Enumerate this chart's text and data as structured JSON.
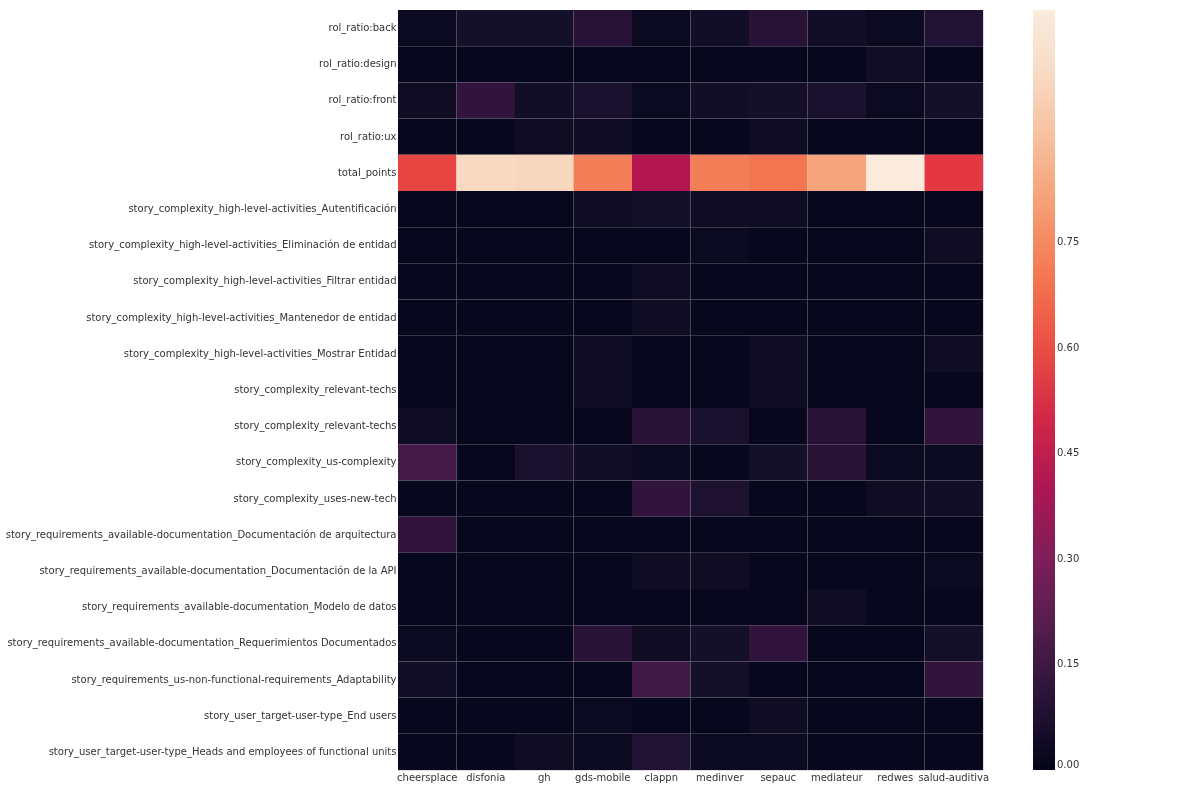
{
  "chart_data": {
    "type": "heatmap",
    "categories": [
      "cheersplace",
      "disfonia",
      "gh",
      "gds-mobile",
      "clappn",
      "medinver",
      "sepauc",
      "mediateur",
      "redwes",
      "salud-auditiva"
    ],
    "y_categories": [
      "rol_ratio:back",
      "rol_ratio:design",
      "rol_ratio:front",
      "rol_ratio:ux",
      "total_points",
      "story_complexity_high-level-activities_Autentificación",
      "story_complexity_high-level-activities_Eliminación de entidad",
      "story_complexity_high-level-activities_Filtrar entidad",
      "story_complexity_high-level-activities_Mantenedor de entidad",
      "story_complexity_high-level-activities_Mostrar Entidad",
      "story_complexity_relevant-techs",
      "story_complexity_relevant-techs",
      "story_complexity_us-complexity",
      "story_complexity_uses-new-tech",
      "story_requirements_available-documentation_Documentación de arquitectura",
      "story_requirements_available-documentation_Documentación de la API",
      "story_requirements_available-documentation_Modelo de datos",
      "story_requirements_available-documentation_Requerimientos Documentados",
      "story_requirements_us-non-functional-requirements_Adaptability",
      "story_user_target-user-type_End users",
      "story_user_target-user-type_Heads and employees of functional units"
    ],
    "cells": [
      [
        0.02,
        0.05,
        0.05,
        0.1,
        0.02,
        0.04,
        0.1,
        0.04,
        0.02,
        0.08
      ],
      [
        0.01,
        0.01,
        0.01,
        0.01,
        0.01,
        0.01,
        0.01,
        0.01,
        0.04,
        0.01
      ],
      [
        0.03,
        0.12,
        0.04,
        0.06,
        0.02,
        0.04,
        0.05,
        0.06,
        0.02,
        0.05
      ],
      [
        0.01,
        0.01,
        0.03,
        0.03,
        0.01,
        0.01,
        0.03,
        0.01,
        0.01,
        0.01
      ],
      [
        0.58,
        0.98,
        0.97,
        0.72,
        0.42,
        0.72,
        0.7,
        0.82,
        1.08,
        0.55
      ],
      [
        0.01,
        0.01,
        0.01,
        0.03,
        0.05,
        0.03,
        0.03,
        0.01,
        0.01,
        0.01
      ],
      [
        0.01,
        0.01,
        0.01,
        0.01,
        0.01,
        0.02,
        0.01,
        0.01,
        0.01,
        0.03
      ],
      [
        0.01,
        0.01,
        0.01,
        0.01,
        0.03,
        0.01,
        0.01,
        0.01,
        0.01,
        0.01
      ],
      [
        0.01,
        0.01,
        0.01,
        0.01,
        0.03,
        0.01,
        0.01,
        0.01,
        0.01,
        0.01
      ],
      [
        0.01,
        0.01,
        0.01,
        0.03,
        0.01,
        0.01,
        0.03,
        0.01,
        0.01,
        0.03
      ],
      [
        0.01,
        0.01,
        0.01,
        0.03,
        0.01,
        0.01,
        0.03,
        0.01,
        0.01,
        0.01
      ],
      [
        0.03,
        0.01,
        0.01,
        0.01,
        0.1,
        0.06,
        0.01,
        0.1,
        0.01,
        0.12
      ],
      [
        0.17,
        0.01,
        0.06,
        0.04,
        0.02,
        0.01,
        0.05,
        0.1,
        0.02,
        0.02
      ],
      [
        0.01,
        0.01,
        0.01,
        0.01,
        0.12,
        0.07,
        0.01,
        0.01,
        0.03,
        0.04
      ],
      [
        0.12,
        0.01,
        0.01,
        0.01,
        0.01,
        0.01,
        0.01,
        0.01,
        0.01,
        0.01
      ],
      [
        0.01,
        0.01,
        0.01,
        0.01,
        0.03,
        0.03,
        0.01,
        0.01,
        0.01,
        0.02
      ],
      [
        0.01,
        0.01,
        0.01,
        0.01,
        0.01,
        0.01,
        0.01,
        0.03,
        0.01,
        0.01
      ],
      [
        0.02,
        0.01,
        0.01,
        0.1,
        0.03,
        0.05,
        0.12,
        0.01,
        0.01,
        0.05
      ],
      [
        0.04,
        0.01,
        0.01,
        0.01,
        0.16,
        0.05,
        0.01,
        0.01,
        0.01,
        0.12
      ],
      [
        0.01,
        0.01,
        0.01,
        0.02,
        0.01,
        0.01,
        0.03,
        0.01,
        0.01,
        0.01
      ],
      [
        0.01,
        0.01,
        0.03,
        0.02,
        0.08,
        0.02,
        0.02,
        0.01,
        0.01,
        0.01
      ]
    ],
    "clim": [
      0,
      1.08
    ],
    "cticks": [
      {
        "value": 0,
        "label": "0.00"
      },
      {
        "value": 0.15,
        "label": "0.15"
      },
      {
        "value": 0.3,
        "label": "0.30"
      },
      {
        "value": 0.45,
        "label": "0.45"
      },
      {
        "value": 0.6,
        "label": "0.60"
      },
      {
        "value": 0.75,
        "label": "0.75"
      }
    ]
  }
}
